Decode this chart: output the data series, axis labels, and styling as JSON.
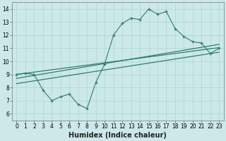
{
  "xlabel": "Humidex (Indice chaleur)",
  "bg_color": "#cce8e8",
  "line_color": "#2e7d6e",
  "xlim": [
    -0.5,
    23.5
  ],
  "ylim": [
    5.5,
    14.5
  ],
  "xticks": [
    0,
    1,
    2,
    3,
    4,
    5,
    6,
    7,
    8,
    9,
    10,
    11,
    12,
    13,
    14,
    15,
    16,
    17,
    18,
    19,
    20,
    21,
    22,
    23
  ],
  "yticks": [
    6,
    7,
    8,
    9,
    10,
    11,
    12,
    13,
    14
  ],
  "line1_x": [
    0,
    1,
    2,
    3,
    4,
    5,
    6,
    7,
    8,
    9,
    10,
    11,
    12,
    13,
    14,
    15,
    16,
    17,
    18,
    19,
    20,
    21,
    22,
    23
  ],
  "line1_y": [
    9.0,
    9.1,
    9.0,
    7.8,
    7.0,
    7.3,
    7.5,
    6.7,
    6.4,
    8.4,
    9.8,
    12.0,
    12.9,
    13.3,
    13.2,
    14.0,
    13.6,
    13.8,
    12.5,
    11.9,
    11.5,
    11.4,
    10.6,
    11.0
  ],
  "trend1_x": [
    0,
    23
  ],
  "trend1_y": [
    9.0,
    11.05
  ],
  "trend2_x": [
    0,
    23
  ],
  "trend2_y": [
    8.7,
    11.3
  ],
  "trend3_x": [
    0,
    23
  ],
  "trend3_y": [
    8.3,
    10.7
  ],
  "grid_color": "#aad4d4",
  "xlabel_fontsize": 7,
  "tick_fontsize": 5.5
}
